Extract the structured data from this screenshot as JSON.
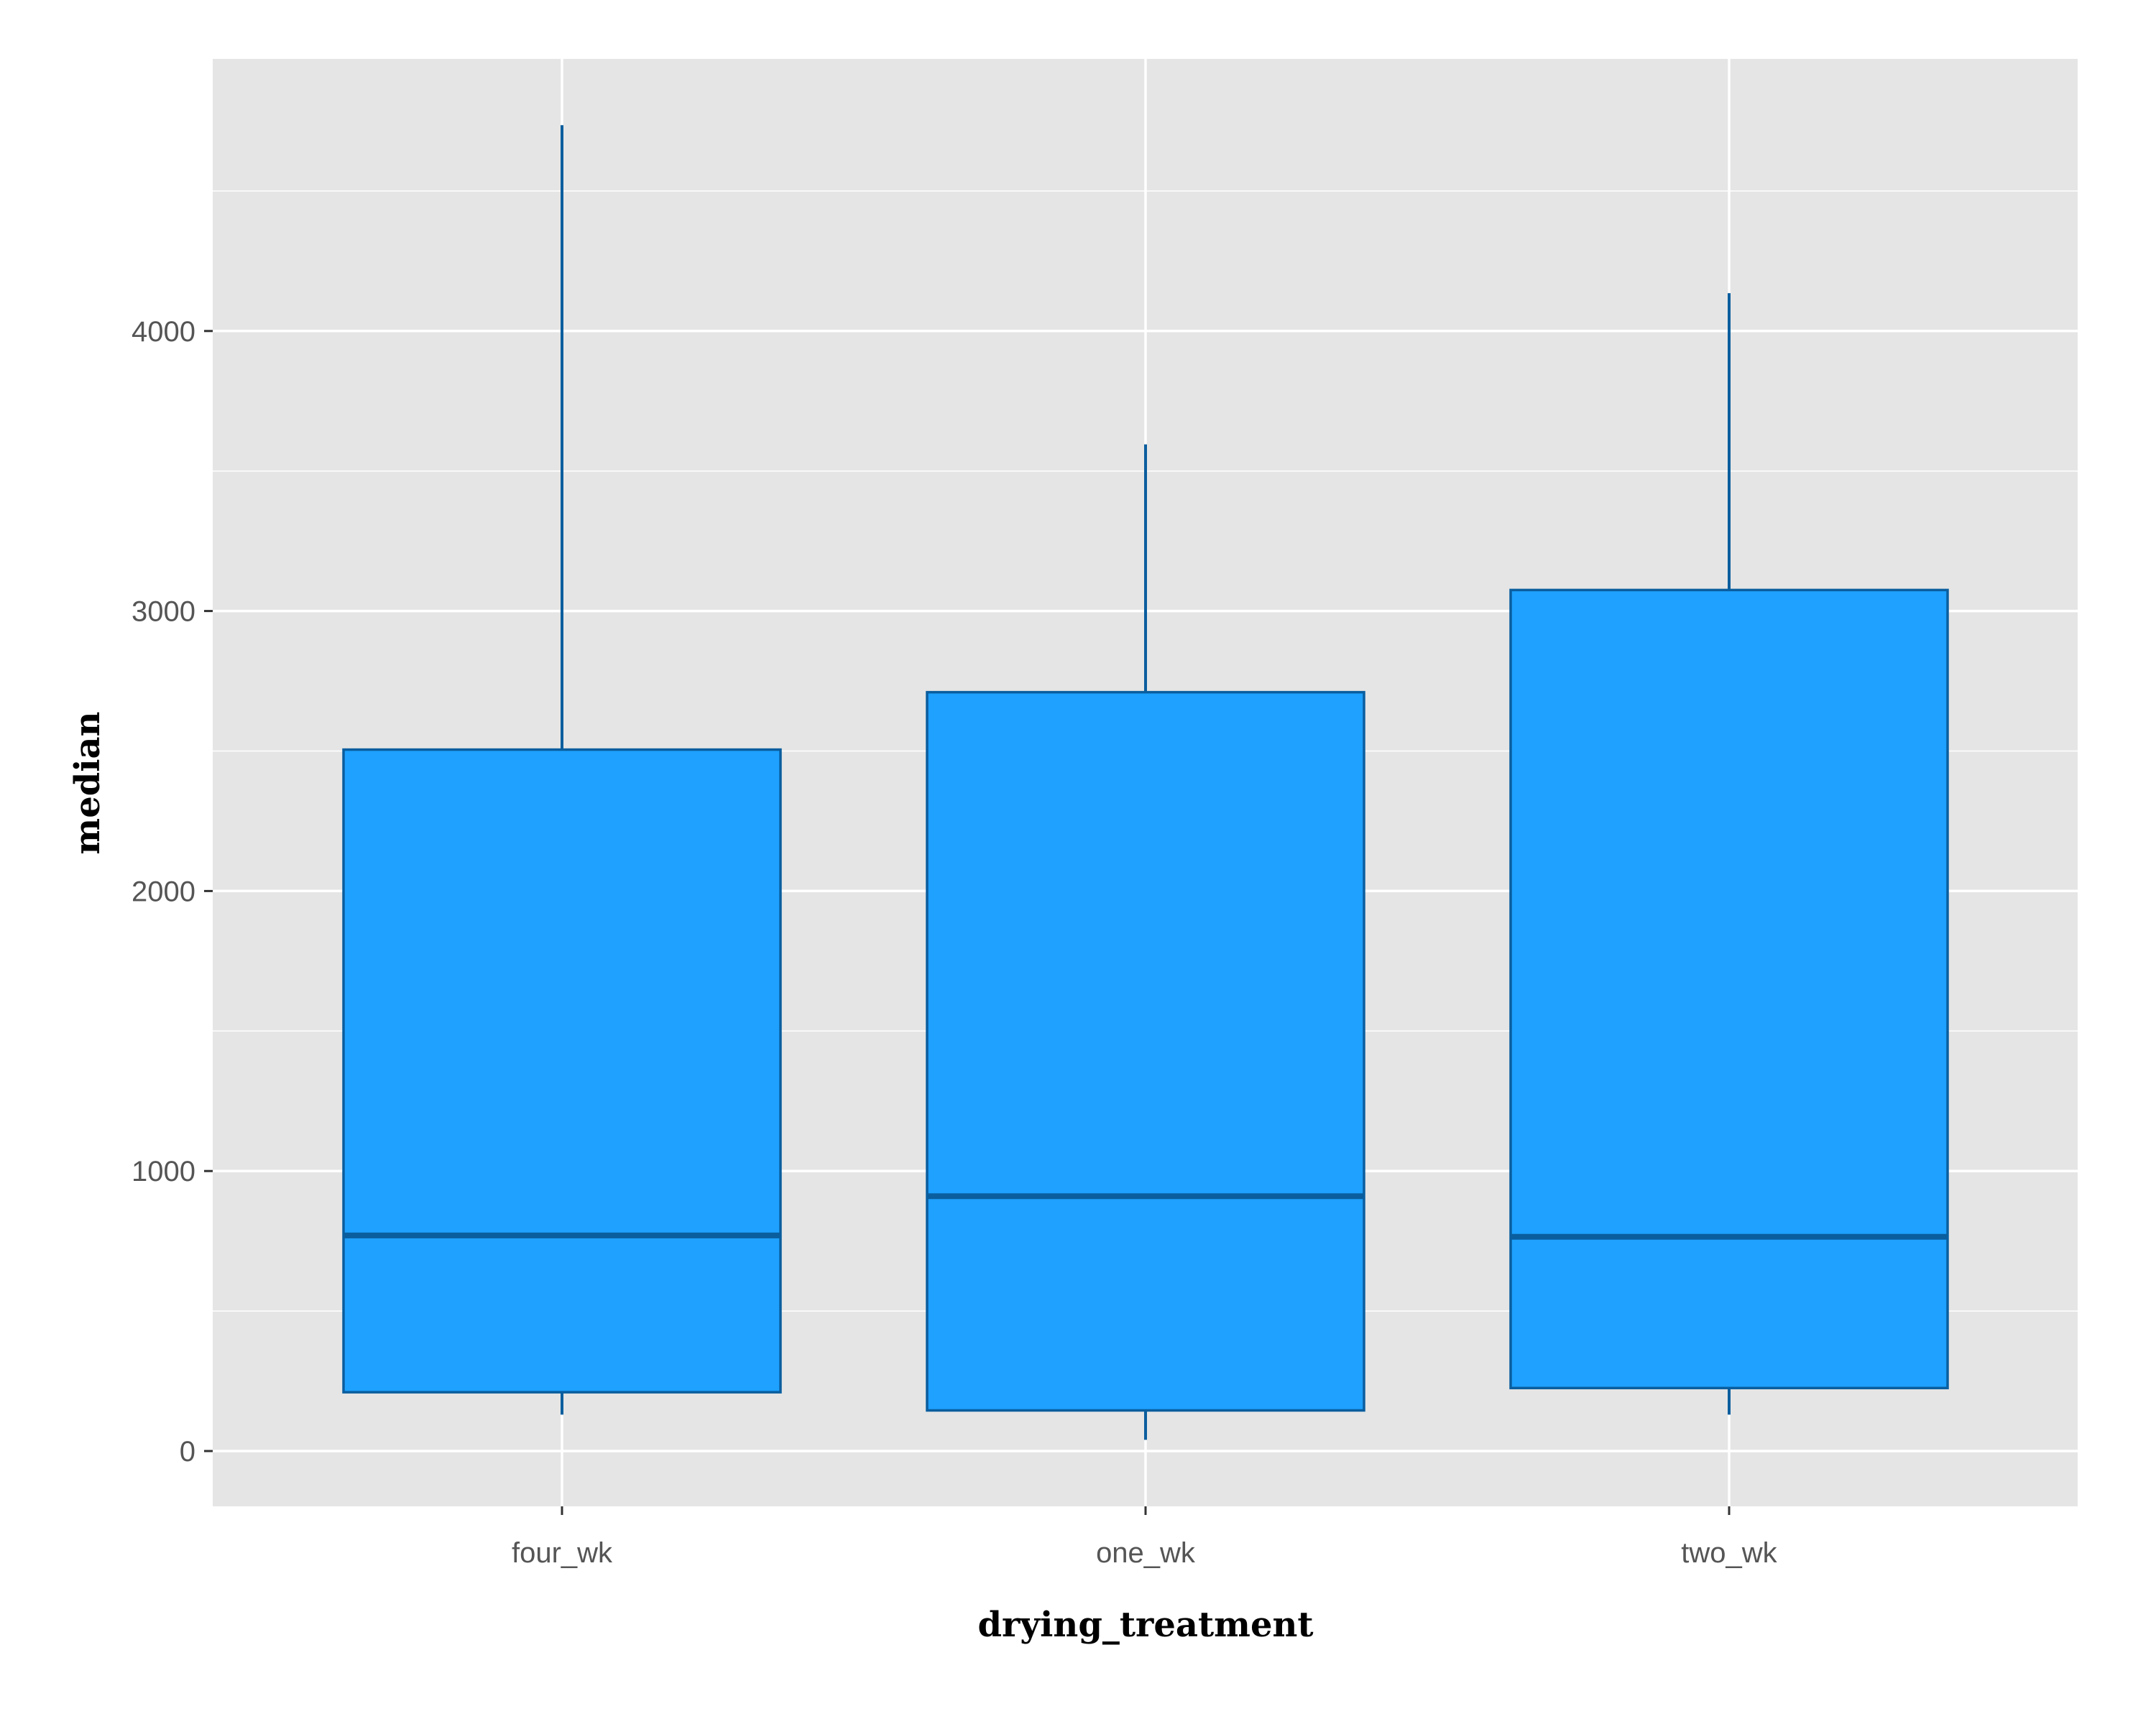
{
  "chart_data": {
    "type": "boxplot",
    "xlabel": "drying_treatment",
    "ylabel": "median",
    "categories": [
      "four_wk",
      "one_wk",
      "two_wk"
    ],
    "boxes": [
      {
        "category": "four_wk",
        "whisker_low": 130,
        "q1": 210,
        "median": 770,
        "q3": 2505,
        "whisker_high": 4735
      },
      {
        "category": "one_wk",
        "whisker_low": 40,
        "q1": 145,
        "median": 910,
        "q3": 2710,
        "whisker_high": 3595
      },
      {
        "category": "two_wk",
        "whisker_low": 130,
        "q1": 225,
        "median": 765,
        "q3": 3075,
        "whisker_high": 4135
      }
    ],
    "ylim": [
      -195,
      4970
    ],
    "yticks": [
      0,
      1000,
      2000,
      3000,
      4000
    ],
    "grid": true,
    "colors": {
      "panel_background": "#E5E5E5",
      "grid": "#FFFFFF",
      "box_fill": "#1EA1FF",
      "box_outline": "#0A5E9E",
      "median_line": "#0A5E9E",
      "tick_label": "#555555",
      "axis_title": "#000000"
    }
  }
}
